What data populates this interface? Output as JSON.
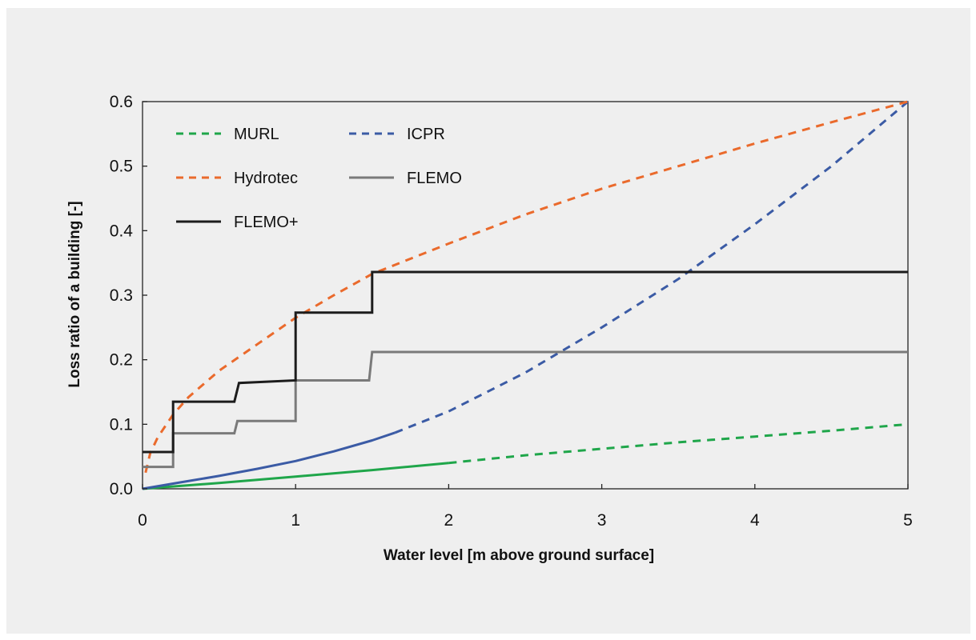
{
  "chart_data": {
    "type": "line",
    "title": "",
    "xlabel": "Water level [m above ground surface]",
    "ylabel": "Loss ratio of a building [-]",
    "xlim": [
      0,
      5
    ],
    "ylim": [
      0,
      0.6
    ],
    "x_ticks": [
      "0",
      "1",
      "2",
      "3",
      "4",
      "5"
    ],
    "y_ticks": [
      "0.0",
      "0.1",
      "0.2",
      "0.3",
      "0.4",
      "0.5",
      "0.6"
    ],
    "grid": false,
    "legend_position": "top-left",
    "series": [
      {
        "name": "MURL",
        "color": "#1fa64a",
        "style": "solid-then-dashed",
        "solid_until_x": 2.05,
        "x": [
          0,
          0.5,
          1,
          1.5,
          2,
          2.5,
          3,
          3.5,
          4,
          4.5,
          5
        ],
        "y": [
          0,
          0.009,
          0.019,
          0.029,
          0.04,
          0.052,
          0.062,
          0.072,
          0.081,
          0.09,
          0.1
        ]
      },
      {
        "name": "ICPR",
        "color": "#3b5ba5",
        "style": "solid-then-dashed",
        "solid_until_x": 1.65,
        "x": [
          0,
          0.25,
          0.5,
          0.75,
          1,
          1.25,
          1.5,
          1.65,
          2,
          2.5,
          3,
          3.5,
          4,
          4.5,
          5
        ],
        "y": [
          0,
          0.01,
          0.02,
          0.031,
          0.043,
          0.058,
          0.075,
          0.087,
          0.12,
          0.18,
          0.25,
          0.325,
          0.41,
          0.5,
          0.6
        ]
      },
      {
        "name": "Hydrotec",
        "color": "#ea6a2c",
        "style": "dashed",
        "x": [
          0.02,
          0.05,
          0.1,
          0.2,
          0.3,
          0.5,
          0.75,
          1,
          1.25,
          1.5,
          2,
          2.5,
          3,
          3.5,
          4,
          4.5,
          5
        ],
        "y": [
          0.025,
          0.055,
          0.08,
          0.115,
          0.142,
          0.183,
          0.224,
          0.265,
          0.3,
          0.333,
          0.38,
          0.425,
          0.465,
          0.5,
          0.535,
          0.568,
          0.6
        ]
      },
      {
        "name": "FLEMO",
        "color": "#7a7a7a",
        "style": "solid",
        "x": [
          0,
          0.2,
          0.2,
          0.6,
          0.62,
          1,
          1,
          1.48,
          1.5,
          5
        ],
        "y": [
          0.034,
          0.034,
          0.086,
          0.086,
          0.105,
          0.105,
          0.168,
          0.168,
          0.212,
          0.212
        ]
      },
      {
        "name": "FLEMO+",
        "color": "#1c1c1c",
        "style": "solid",
        "x": [
          0,
          0.2,
          0.2,
          0.6,
          0.63,
          1,
          1,
          1.5,
          1.5,
          5
        ],
        "y": [
          0.057,
          0.057,
          0.135,
          0.135,
          0.164,
          0.168,
          0.273,
          0.273,
          0.336,
          0.336
        ]
      }
    ]
  }
}
